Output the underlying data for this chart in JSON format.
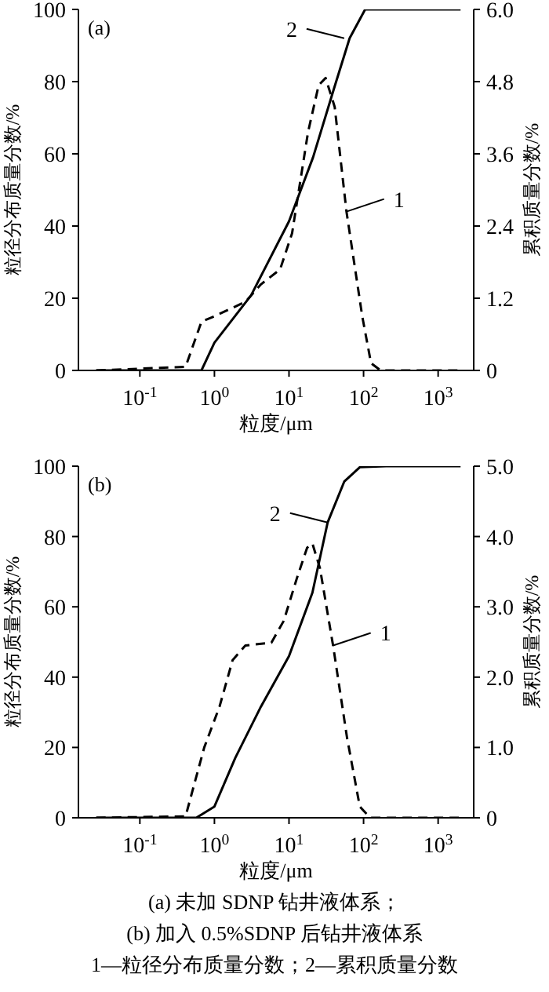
{
  "chart_data": [
    {
      "type": "line",
      "ylabel": "粒径分布质量分数/%",
      "y2label": "累积质量分数/%",
      "xlabel": "粒度/μm",
      "log": "x",
      "xlim": [
        0.015,
        3000
      ],
      "xticks": [
        {
          "value": 0.1,
          "label": "10$^{-1}$"
        },
        {
          "value": 1,
          "label": "10$^{0}$"
        },
        {
          "value": 10,
          "label": "10$^{1}$"
        },
        {
          "value": 100,
          "label": "10$^{2}$"
        },
        {
          "value": 1000,
          "label": "10$^{3}$"
        }
      ],
      "ylim": [
        0,
        100
      ],
      "yticks": [
        0,
        20,
        40,
        60,
        80,
        100
      ],
      "y2lim": [
        0,
        6
      ],
      "y2ticks": [
        {
          "value": 0,
          "label": "0"
        },
        {
          "value": 1.2,
          "label": "1.2"
        },
        {
          "value": 2.4,
          "label": "2.4"
        },
        {
          "value": 3.6,
          "label": "3.6"
        },
        {
          "value": 4.8,
          "label": "4.8"
        },
        {
          "value": 6,
          "label": "6.0"
        }
      ],
      "annotations": [
        "(a)",
        {
          "text": "2",
          "x": 55,
          "y": 92
        },
        {
          "text": "1",
          "x": 59,
          "y": 44
        }
      ],
      "series": [
        {
          "color": "#000000",
          "axis": "y2",
          "line_style": "dashed",
          "x": [
            0.026,
            0.41,
            0.67,
            1,
            2.6,
            4.2,
            7.6,
            11,
            18,
            25,
            31,
            41,
            59,
            96,
            126,
            170,
            2000
          ],
          "values": [
            0,
            0.06,
            0.81,
            0.9,
            1.14,
            1.43,
            1.68,
            2.28,
            3.96,
            4.74,
            4.86,
            4.38,
            2.64,
            0.9,
            0.12,
            0,
            0
          ]
        },
        {
          "color": "#000000",
          "line_style": "solid",
          "x": [
            0.026,
            0.67,
            1,
            3.1,
            10,
            21,
            40,
            65,
            105,
            2000
          ],
          "values": [
            0,
            0,
            7.7,
            20.8,
            41.3,
            59,
            78,
            92,
            100,
            100
          ]
        }
      ]
    },
    {
      "type": "line",
      "ylabel": "粒径分布质量分数/%",
      "y2label": "累积质量分数/%",
      "xlabel": "粒度/μm",
      "log": "x",
      "xlim": [
        0.015,
        3000
      ],
      "xticks": [
        {
          "value": 0.1,
          "label": "10$^{-1}$"
        },
        {
          "value": 1,
          "label": "10$^{0}$"
        },
        {
          "value": 10,
          "label": "10$^{1}$"
        },
        {
          "value": 100,
          "label": "10$^{2}$"
        },
        {
          "value": 1000,
          "label": "10$^{3}$"
        }
      ],
      "ylim": [
        0,
        100
      ],
      "yticks": [
        0,
        20,
        40,
        60,
        80,
        100
      ],
      "y2lim": [
        0,
        5
      ],
      "y2ticks": [
        {
          "value": 0,
          "label": "0"
        },
        {
          "value": 1,
          "label": "1.0"
        },
        {
          "value": 2,
          "label": "2.0"
        },
        {
          "value": 3,
          "label": "3.0"
        },
        {
          "value": 4,
          "label": "4.0"
        },
        {
          "value": 5,
          "label": "5.0"
        }
      ],
      "annotations": [
        "(b)",
        {
          "text": "2",
          "x": 33,
          "y": 84
        },
        {
          "text": "1",
          "x": 39,
          "y": 49
        },
        "(a) 未加 SDNP 钻井液体系；",
        "(b) 加入 0.5%SDNP 后钻井液体系",
        "1—粒径分布质量分数；2—累积质量分数"
      ],
      "series": [
        {
          "color": "#000000",
          "axis": "y2",
          "line_style": "dashed",
          "x": [
            0.026,
            0.41,
            0.73,
            1.17,
            1.75,
            2.6,
            5.8,
            8.5,
            12.7,
            17.5,
            20.6,
            26,
            39,
            60,
            89,
            122,
            2000
          ],
          "values": [
            0,
            0.02,
            1.0,
            1.58,
            2.24,
            2.45,
            2.49,
            2.8,
            3.4,
            3.84,
            3.9,
            3.55,
            2.45,
            1.14,
            0.16,
            0,
            0
          ]
        },
        {
          "color": "#000000",
          "line_style": "solid",
          "x": [
            0.026,
            0.57,
            1,
            1.9,
            4.2,
            10,
            20.6,
            33,
            55,
            89,
            200,
            2000
          ],
          "values": [
            0,
            0,
            3.2,
            17,
            31.6,
            46,
            64,
            84,
            95.6,
            99.7,
            100,
            100
          ]
        }
      ]
    }
  ]
}
